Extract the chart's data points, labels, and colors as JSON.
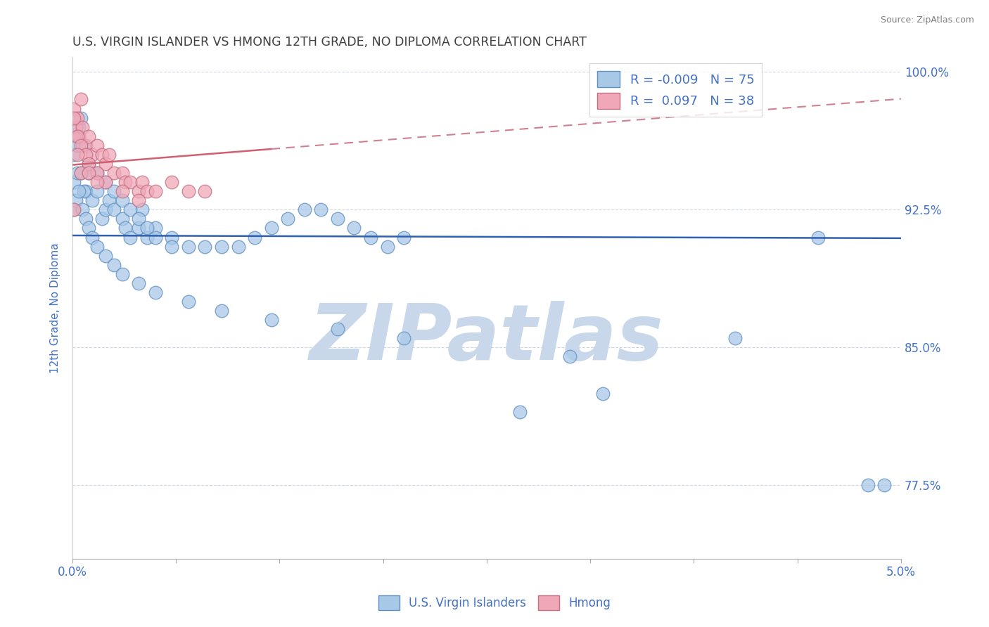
{
  "title": "U.S. VIRGIN ISLANDER VS HMONG 12TH GRADE, NO DIPLOMA CORRELATION CHART",
  "source": "Source: ZipAtlas.com",
  "ylabel": "12th Grade, No Diploma",
  "legend_labels": [
    "U.S. Virgin Islanders",
    "Hmong"
  ],
  "blue_R": -0.009,
  "blue_N": 75,
  "pink_R": 0.097,
  "pink_N": 38,
  "xlim": [
    0.0,
    0.05
  ],
  "ylim": [
    0.735,
    1.008
  ],
  "xtick_positions": [
    0.0,
    0.00625,
    0.0125,
    0.01875,
    0.025,
    0.03125,
    0.0375,
    0.04375,
    0.05
  ],
  "xlabels_outer": [
    "0.0%",
    "5.0%"
  ],
  "ytick_values": [
    0.775,
    0.85,
    0.925,
    1.0
  ],
  "ytick_labels": [
    "77.5%",
    "85.0%",
    "92.5%",
    "100.0%"
  ],
  "blue_scatter_color": "#a8c8e8",
  "blue_edge_color": "#6090c0",
  "pink_scatter_color": "#f0a8b8",
  "pink_edge_color": "#c07080",
  "blue_line_color": "#3060b0",
  "pink_line_color": "#d06070",
  "pink_dash_color": "#d08090",
  "watermark_text": "ZIPatlas",
  "watermark_color": "#c8d8ea",
  "title_color": "#404040",
  "axis_label_color": "#4472c4",
  "tick_label_color": "#4472c4",
  "legend_R_color": "#4472c4",
  "source_color": "#808080",
  "blue_x": [
    0.0001,
    0.0002,
    0.0003,
    0.0004,
    0.0005,
    0.0006,
    0.0008,
    0.001,
    0.0012,
    0.0015,
    0.0018,
    0.002,
    0.0022,
    0.0025,
    0.003,
    0.0032,
    0.0035,
    0.004,
    0.0042,
    0.0045,
    0.005,
    0.006,
    0.007,
    0.008,
    0.009,
    0.01,
    0.011,
    0.012,
    0.013,
    0.014,
    0.015,
    0.016,
    0.017,
    0.018,
    0.019,
    0.02,
    0.0001,
    0.0003,
    0.0005,
    0.0007,
    0.001,
    0.0015,
    0.002,
    0.0025,
    0.003,
    0.0035,
    0.004,
    0.0045,
    0.005,
    0.006,
    0.0001,
    0.0002,
    0.0004,
    0.0006,
    0.0008,
    0.001,
    0.0012,
    0.0015,
    0.002,
    0.0025,
    0.003,
    0.004,
    0.005,
    0.007,
    0.009,
    0.012,
    0.016,
    0.02,
    0.03,
    0.04,
    0.045,
    0.048,
    0.049,
    0.027,
    0.032
  ],
  "blue_y": [
    0.955,
    0.965,
    0.96,
    0.97,
    0.975,
    0.96,
    0.935,
    0.945,
    0.93,
    0.935,
    0.92,
    0.925,
    0.93,
    0.925,
    0.92,
    0.915,
    0.91,
    0.915,
    0.925,
    0.91,
    0.915,
    0.91,
    0.905,
    0.905,
    0.905,
    0.905,
    0.91,
    0.915,
    0.92,
    0.925,
    0.925,
    0.92,
    0.915,
    0.91,
    0.905,
    0.91,
    0.94,
    0.945,
    0.945,
    0.935,
    0.95,
    0.945,
    0.94,
    0.935,
    0.93,
    0.925,
    0.92,
    0.915,
    0.91,
    0.905,
    0.925,
    0.93,
    0.935,
    0.925,
    0.92,
    0.915,
    0.91,
    0.905,
    0.9,
    0.895,
    0.89,
    0.885,
    0.88,
    0.875,
    0.87,
    0.865,
    0.86,
    0.855,
    0.845,
    0.855,
    0.91,
    0.775,
    0.775,
    0.815,
    0.825
  ],
  "pink_x": [
    0.0001,
    0.0002,
    0.0003,
    0.0004,
    0.0005,
    0.0006,
    0.0008,
    0.001,
    0.0012,
    0.0015,
    0.0018,
    0.002,
    0.0022,
    0.0025,
    0.003,
    0.0032,
    0.0035,
    0.004,
    0.0042,
    0.0045,
    0.005,
    0.006,
    0.007,
    0.008,
    0.0001,
    0.0003,
    0.0005,
    0.0008,
    0.001,
    0.0015,
    0.002,
    0.003,
    0.004,
    0.0001,
    0.0003,
    0.0005,
    0.001,
    0.0015
  ],
  "pink_y": [
    0.98,
    0.97,
    0.975,
    0.965,
    0.985,
    0.97,
    0.96,
    0.965,
    0.955,
    0.96,
    0.955,
    0.95,
    0.955,
    0.945,
    0.945,
    0.94,
    0.94,
    0.935,
    0.94,
    0.935,
    0.935,
    0.94,
    0.935,
    0.935,
    0.975,
    0.965,
    0.96,
    0.955,
    0.95,
    0.945,
    0.94,
    0.935,
    0.93,
    0.925,
    0.955,
    0.945,
    0.945,
    0.94
  ]
}
